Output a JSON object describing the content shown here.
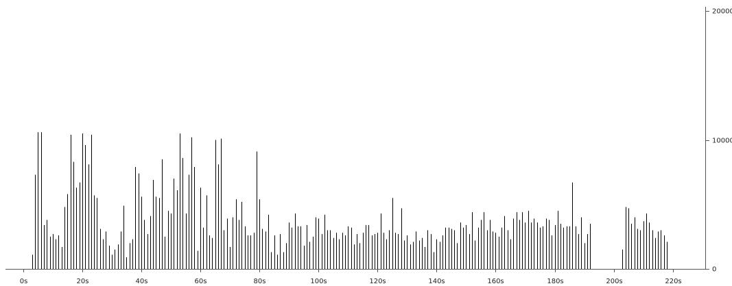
{
  "chart_data": {
    "type": "bar",
    "color": "#000000",
    "x": [
      3,
      4,
      5,
      6,
      7,
      8,
      9,
      10,
      11,
      12,
      13,
      14,
      15,
      16,
      17,
      18,
      19,
      20,
      21,
      22,
      23,
      24,
      25,
      26,
      27,
      28,
      29,
      30,
      31,
      32,
      33,
      34,
      35,
      36,
      37,
      38,
      39,
      40,
      41,
      42,
      43,
      44,
      45,
      46,
      47,
      48,
      49,
      50,
      51,
      52,
      53,
      54,
      55,
      56,
      57,
      58,
      59,
      60,
      61,
      62,
      63,
      64,
      65,
      66,
      67,
      68,
      69,
      70,
      71,
      72,
      73,
      74,
      75,
      76,
      77,
      78,
      79,
      80,
      81,
      82,
      83,
      84,
      85,
      86,
      87,
      88,
      89,
      90,
      91,
      92,
      93,
      94,
      95,
      96,
      97,
      98,
      99,
      100,
      101,
      102,
      103,
      104,
      105,
      106,
      107,
      108,
      109,
      110,
      111,
      112,
      113,
      114,
      115,
      116,
      117,
      118,
      119,
      120,
      121,
      122,
      123,
      124,
      125,
      126,
      127,
      128,
      129,
      130,
      131,
      132,
      133,
      134,
      135,
      136,
      137,
      138,
      139,
      140,
      141,
      142,
      143,
      144,
      145,
      146,
      147,
      148,
      149,
      150,
      151,
      152,
      153,
      154,
      155,
      156,
      157,
      158,
      159,
      160,
      161,
      162,
      163,
      164,
      165,
      166,
      167,
      168,
      169,
      170,
      171,
      172,
      173,
      174,
      175,
      176,
      177,
      178,
      179,
      180,
      181,
      182,
      183,
      184,
      185,
      186,
      187,
      188,
      189,
      190,
      191,
      192,
      193,
      194,
      195,
      196,
      197,
      198,
      199,
      200,
      201,
      202,
      203,
      204,
      205,
      206,
      207,
      208,
      209,
      210,
      211,
      212,
      213,
      214,
      215,
      216,
      217,
      218
    ],
    "values": [
      1100,
      7300,
      10600,
      10600,
      3400,
      3800,
      2500,
      2700,
      2300,
      2600,
      1700,
      4800,
      5800,
      10400,
      8300,
      6300,
      6700,
      10500,
      9600,
      8100,
      10400,
      5700,
      5500,
      3100,
      2300,
      2900,
      1800,
      1100,
      1500,
      1900,
      2900,
      4900,
      900,
      2000,
      2300,
      7900,
      7400,
      5600,
      3800,
      2700,
      4100,
      6900,
      5600,
      5500,
      8500,
      2500,
      4500,
      4300,
      7000,
      6100,
      10500,
      8600,
      4300,
      7300,
      10200,
      7900,
      1400,
      6300,
      3200,
      5700,
      2600,
      2400,
      10000,
      8100,
      10100,
      3000,
      3900,
      1700,
      4000,
      5400,
      3800,
      5200,
      3300,
      2600,
      2600,
      2800,
      9100,
      5400,
      3100,
      2900,
      4200,
      1300,
      2600,
      1100,
      2700,
      1300,
      2000,
      3600,
      3200,
      4300,
      3300,
      3300,
      1800,
      3400,
      2100,
      2500,
      4000,
      3900,
      2700,
      4200,
      3000,
      3000,
      2400,
      2800,
      2300,
      2800,
      2600,
      3300,
      3200,
      1900,
      2700,
      2000,
      2800,
      3400,
      3400,
      2600,
      2700,
      2800,
      4300,
      2800,
      2300,
      3000,
      5500,
      2800,
      2700,
      4700,
      2200,
      2600,
      1900,
      2100,
      2900,
      2200,
      2400,
      1700,
      3000,
      2700,
      1300,
      2300,
      2100,
      2600,
      3200,
      3200,
      3100,
      3000,
      2000,
      3600,
      3200,
      3400,
      2700,
      4400,
      2200,
      3200,
      3800,
      4400,
      3000,
      3800,
      2900,
      2800,
      2500,
      3200,
      4100,
      3000,
      2300,
      3900,
      4400,
      3800,
      4400,
      3600,
      4500,
      3600,
      3900,
      3600,
      3200,
      3300,
      3900,
      3800,
      2600,
      3400,
      4500,
      3500,
      3200,
      3300,
      3300,
      6700,
      3300,
      2700,
      4000,
      2000,
      2700,
      3500,
      null,
      null,
      null,
      null,
      null,
      null,
      null,
      null,
      null,
      null,
      1500,
      4800,
      4700,
      3500,
      4000,
      3100,
      3000,
      3700,
      4300,
      3600,
      3000,
      2400,
      2900,
      3000,
      2600,
      2100
    ],
    "xlim": [
      -6,
      231
    ],
    "ylim": [
      0,
      20000
    ],
    "xticks": [
      {
        "value": 0,
        "label": "0s"
      },
      {
        "value": 20,
        "label": "20s"
      },
      {
        "value": 40,
        "label": "40s"
      },
      {
        "value": 60,
        "label": "60s"
      },
      {
        "value": 80,
        "label": "80s"
      },
      {
        "value": 100,
        "label": "100s"
      },
      {
        "value": 120,
        "label": "120s"
      },
      {
        "value": 140,
        "label": "140s"
      },
      {
        "value": 160,
        "label": "160s"
      },
      {
        "value": 180,
        "label": "180s"
      },
      {
        "value": 200,
        "label": "200s"
      },
      {
        "value": 220,
        "label": "220s"
      }
    ],
    "yticks": [
      0,
      10000,
      20000
    ]
  }
}
